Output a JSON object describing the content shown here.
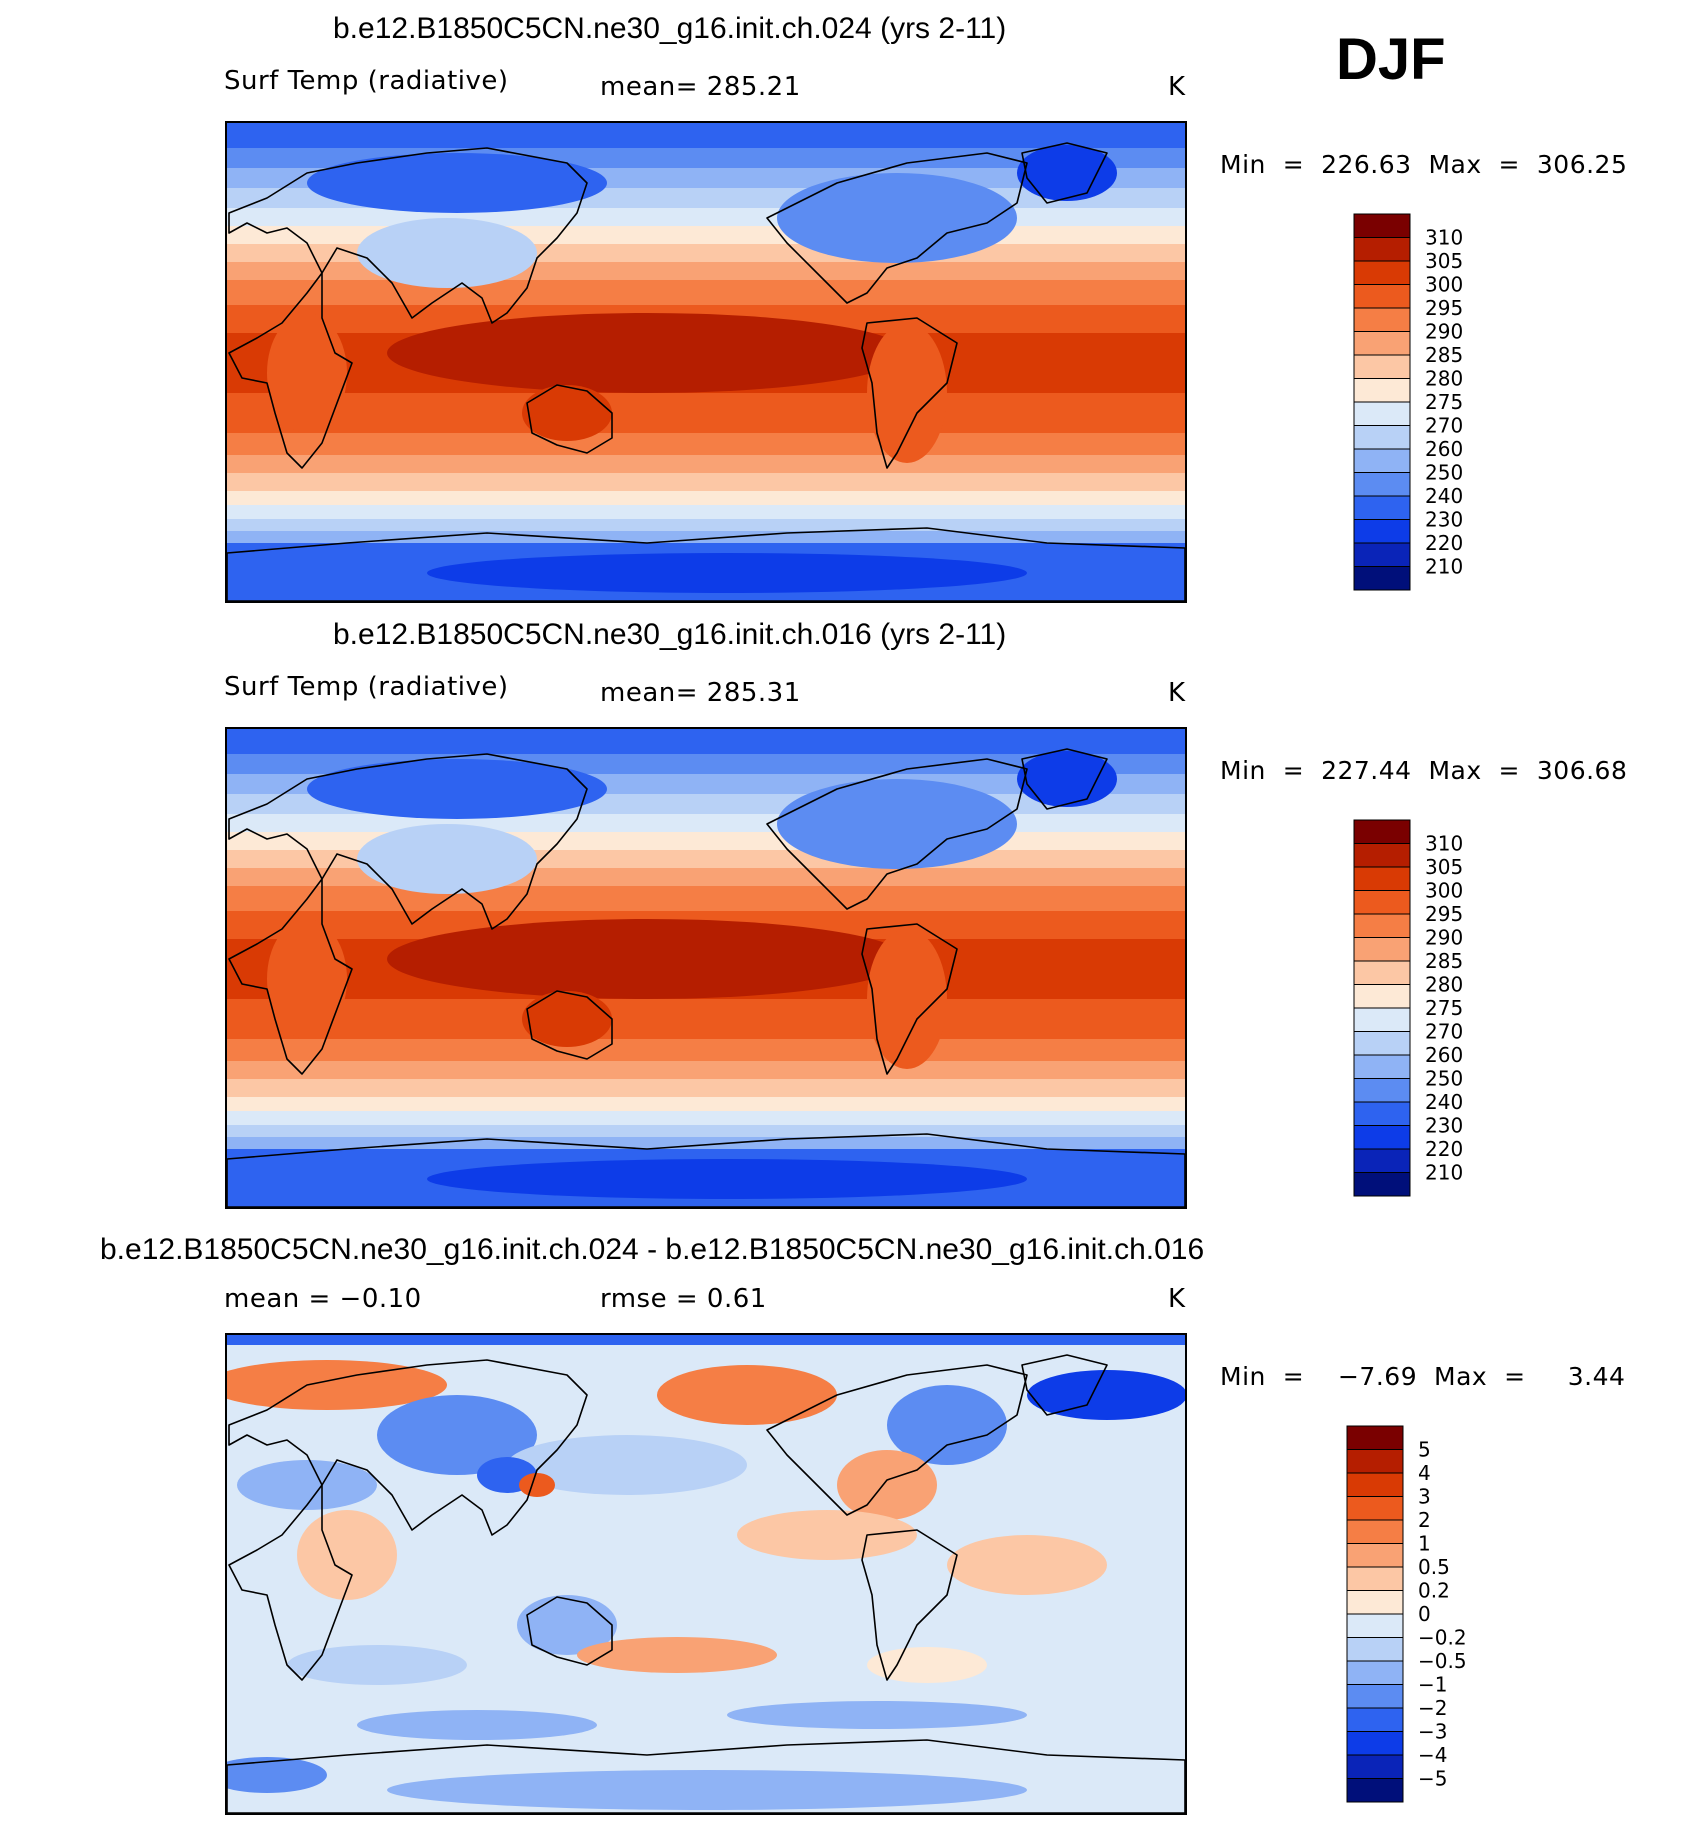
{
  "season": "DJF",
  "panels": [
    {
      "title": "b.e12.B1850C5CN.ne30_g16.init.ch.024 (yrs 2-11)",
      "variable": "Surf Temp (radiative)",
      "stat": "mean=  285.21",
      "units": "K",
      "minmax": "Min  =  226.63  Max  =  306.25",
      "field": "abs"
    },
    {
      "title": "b.e12.B1850C5CN.ne30_g16.init.ch.016 (yrs 2-11)",
      "variable": "Surf Temp (radiative)",
      "stat": "mean=  285.31",
      "units": "K",
      "minmax": "Min  =  227.44  Max  =  306.68",
      "field": "abs"
    },
    {
      "title": "b.e12.B1850C5CN.ne30_g16.init.ch.024 - b.e12.B1850C5CN.ne30_g16.init.ch.016",
      "variable": "mean =    −0.10",
      "stat": "rmse =     0.61",
      "units": "K",
      "minmax": "Min  =    −7.69  Max  =     3.44",
      "field": "diff"
    }
  ],
  "colorbars": {
    "abs": {
      "labels": [
        "310",
        "305",
        "300",
        "295",
        "290",
        "285",
        "280",
        "275",
        "270",
        "260",
        "250",
        "240",
        "230",
        "220",
        "210"
      ],
      "colors": [
        "#7a0000",
        "#b51e00",
        "#d93a04",
        "#ec5a1e",
        "#f57e45",
        "#f9a274",
        "#fcc7a5",
        "#fde9d6",
        "#dbe9f8",
        "#b8d1f6",
        "#8fb3f5",
        "#5c8cf2",
        "#2e63f0",
        "#0d3ce8",
        "#0a24b8",
        "#000f7a"
      ]
    },
    "diff": {
      "labels": [
        "5",
        "4",
        "3",
        "2",
        "1",
        "0.5",
        "0.2",
        "0",
        "−0.2",
        "−0.5",
        "−1",
        "−2",
        "−3",
        "−4",
        "−5"
      ],
      "colors": [
        "#7a0000",
        "#b51e00",
        "#d93a04",
        "#ec5a1e",
        "#f57e45",
        "#f9a274",
        "#fcc7a5",
        "#fde9d6",
        "#dbe9f8",
        "#b8d1f6",
        "#8fb3f5",
        "#5c8cf2",
        "#2e63f0",
        "#0d3ce8",
        "#0a24b8",
        "#000f7a"
      ]
    }
  }
}
